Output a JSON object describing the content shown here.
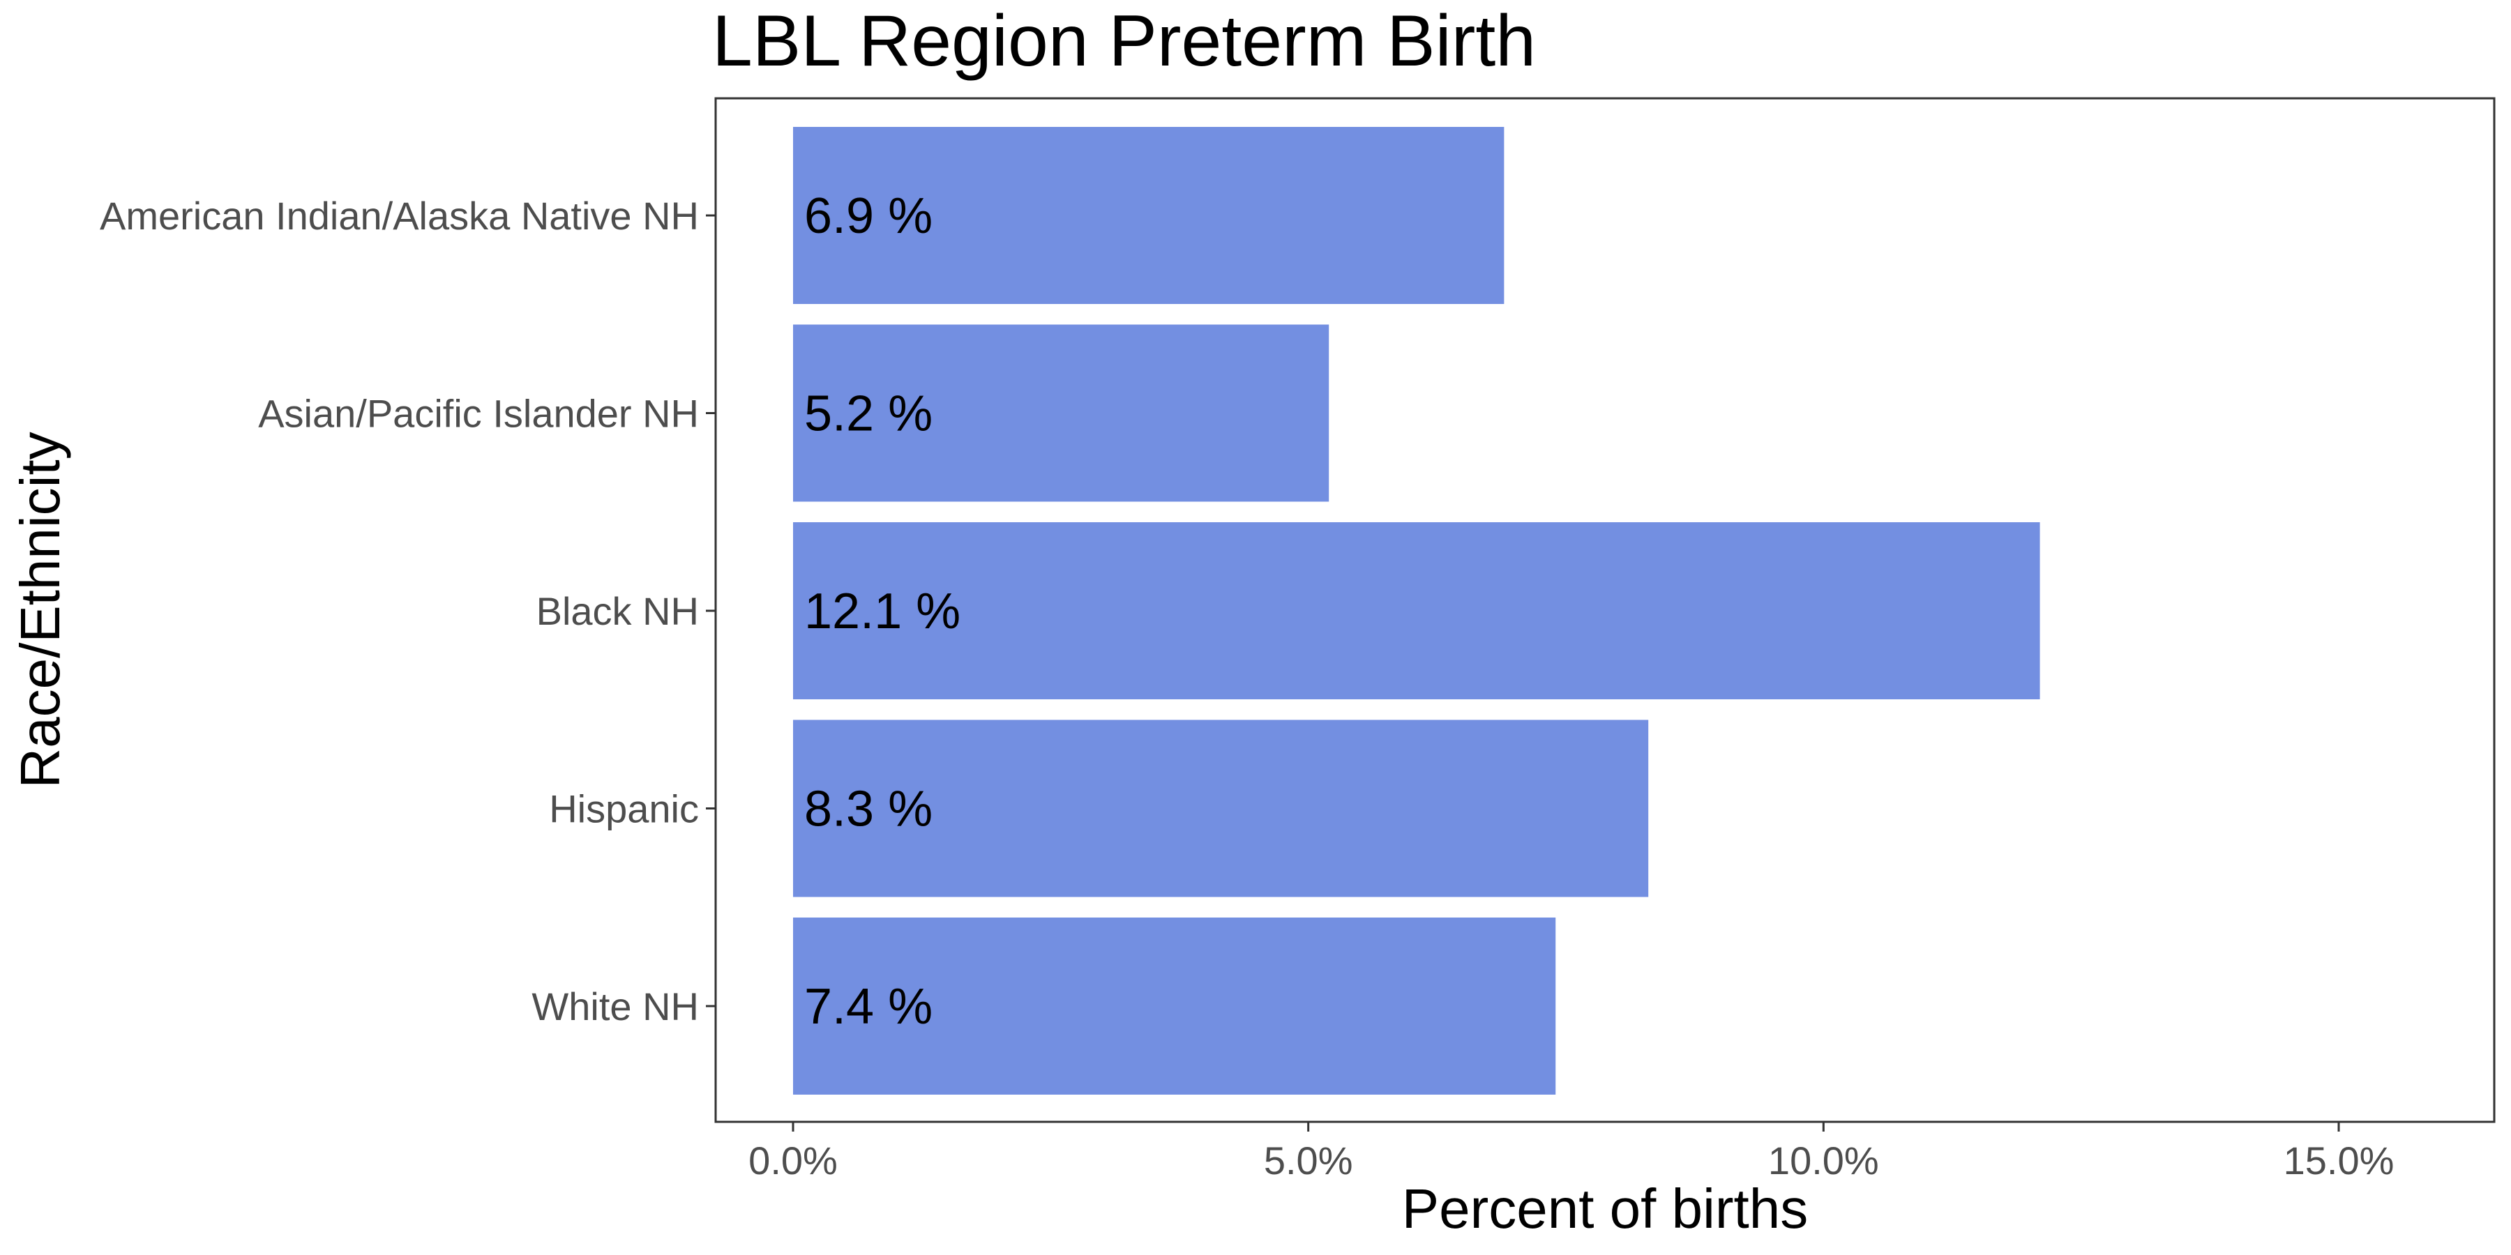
{
  "chart_data": {
    "type": "bar",
    "orientation": "horizontal",
    "title": "LBL Region Preterm Birth",
    "xlabel": "Percent of births",
    "ylabel": "Race/Ethnicity",
    "categories": [
      "American Indian/Alaska Native NH",
      "Asian/Pacific Islander NH",
      "Black NH",
      "Hispanic",
      "White NH"
    ],
    "values": [
      6.9,
      5.2,
      12.1,
      8.3,
      7.4
    ],
    "value_labels": [
      "6.9 %",
      "5.2 %",
      "12.1 %",
      "8.3 %",
      "7.4 %"
    ],
    "x_ticks": [
      0,
      5,
      10,
      15
    ],
    "x_tick_labels": [
      "0.0%",
      "5.0%",
      "10.0%",
      "15.0%"
    ],
    "xlim": [
      -0.75,
      16.5
    ],
    "bar_color": "#738fe1",
    "grid": false,
    "legend": "none"
  }
}
